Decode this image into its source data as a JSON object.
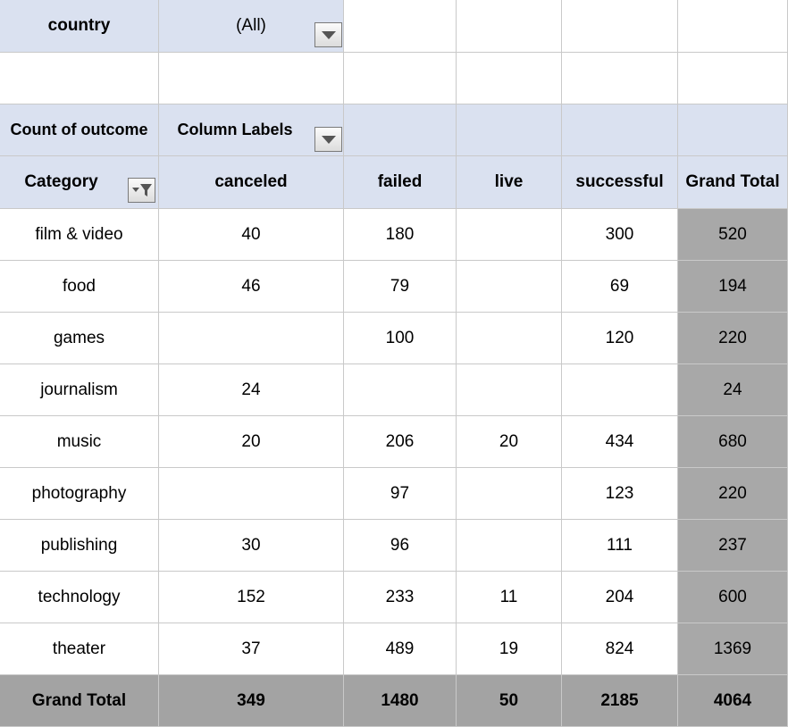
{
  "filter": {
    "label": "country",
    "value": "(All)"
  },
  "pivot": {
    "corner_label": "Count of outcome",
    "column_labels": "Column Labels",
    "row_header": "Category",
    "columns": [
      "canceled",
      "failed",
      "live",
      "successful",
      "Grand Total"
    ],
    "rows": [
      {
        "category": "film & video",
        "values": [
          "40",
          "180",
          "",
          "300",
          "520"
        ]
      },
      {
        "category": "food",
        "values": [
          "46",
          "79",
          "",
          "69",
          "194"
        ]
      },
      {
        "category": "games",
        "values": [
          "",
          "100",
          "",
          "120",
          "220"
        ]
      },
      {
        "category": "journalism",
        "values": [
          "24",
          "",
          "",
          "",
          "24"
        ]
      },
      {
        "category": "music",
        "values": [
          "20",
          "206",
          "20",
          "434",
          "680"
        ]
      },
      {
        "category": "photography",
        "values": [
          "",
          "97",
          "",
          "123",
          "220"
        ]
      },
      {
        "category": "publishing",
        "values": [
          "30",
          "96",
          "",
          "111",
          "237"
        ]
      },
      {
        "category": "technology",
        "values": [
          "152",
          "233",
          "11",
          "204",
          "600"
        ]
      },
      {
        "category": "theater",
        "values": [
          "37",
          "489",
          "19",
          "824",
          "1369"
        ]
      }
    ],
    "grand_total": {
      "label": "Grand Total",
      "values": [
        "349",
        "1480",
        "50",
        "2185",
        "4064"
      ]
    }
  },
  "colors": {
    "header_fill": "#dae1f0",
    "grand_total_fill": "#a8a8a8",
    "gridline": "#c9c9c9"
  },
  "icons": {
    "filter_dropdown": "chevron-down-icon",
    "row_filter": "funnel-icon"
  }
}
